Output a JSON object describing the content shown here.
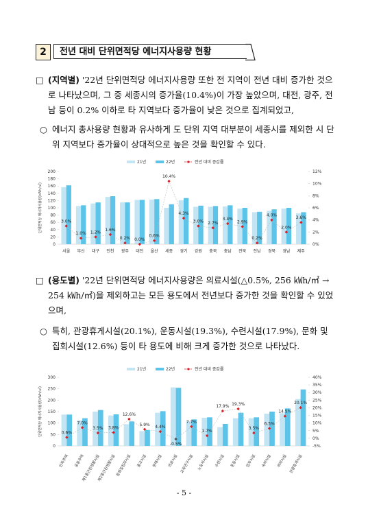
{
  "header": {
    "number": "2",
    "title": "전년 대비 단위면적당 에너지사용량 현황"
  },
  "paragraphs": [
    {
      "marker": "□",
      "label": "(지역별)",
      "text": "'22년 단위면적당 에너지사용량 또한 전 지역이 전년 대비 증가한 것으로 나타났으며, 그 중 세종시의 증가율(10.4%)이 가장 높았으며, 대전, 광주, 전남 등이 0.2% 이하로 타 지역보다 증가율이 낮은 것으로 집계되었고,"
    },
    {
      "marker": "○",
      "text": "에너지 총사용량 현황과 유사하게 도 단위 지역 대부분이 세종시를 제외한 시 단위 지역보다 증가율이 상대적으로 높은 것을 확인할 수 있다."
    },
    {
      "marker": "□",
      "label": "(용도별)",
      "text": "'22년 단위면적당 에너지사용량은 의료시설(△0.5%, 256 ㎾h/㎡ → 254 ㎾h/㎡)을 제외하고는 모든 용도에서 전년보다 증가한 것을 확인할 수 있었으며,"
    },
    {
      "marker": "○",
      "text": "특히, 관광휴게시설(20.1%), 운동시설(19.3%), 수련시설(17.9%), 문화 및 집회시설(12.6%) 등이 타 용도에 비해 크게 증가한 것으로 나타났다."
    }
  ],
  "chart_data": [
    {
      "type": "combo",
      "y_label": "단위면적당 에너지사용량(kWh/㎡)",
      "rotated_labels": false,
      "categories": [
        "서울",
        "부산",
        "대구",
        "인천",
        "광주",
        "대전",
        "울산",
        "세종",
        "경기",
        "강원",
        "충북",
        "충남",
        "전북",
        "전남",
        "경북",
        "경남",
        "제주"
      ],
      "series": [
        {
          "name": "21년",
          "color": "#c3e5f3",
          "values": [
            157,
            105,
            112,
            130,
            115,
            122,
            123,
            100,
            121,
            103,
            103,
            104,
            98,
            88,
            92,
            98,
            85
          ]
        },
        {
          "name": "22년",
          "color": "#5cc4e8",
          "values": [
            162,
            107,
            115,
            132,
            115,
            122,
            124,
            110,
            127,
            106,
            105,
            107,
            100,
            89,
            96,
            100,
            88
          ]
        },
        {
          "name": "전년 대비 증감률",
          "color": "#d81f26",
          "type": "line",
          "axis": "y2",
          "values": [
            3.0,
            1.0,
            1.2,
            1.6,
            0.2,
            0.0,
            0.6,
            10.4,
            4.3,
            3.0,
            2.7,
            3.4,
            2.9,
            0.2,
            4.0,
            2.0,
            3.6
          ],
          "value_labels": [
            "3.0%",
            "1.0%",
            "1.2%",
            "1.6%",
            "0.2%",
            "0.0%",
            "0.6%",
            "10.4%",
            "4.3%",
            "3.0%",
            "2.7%",
            "3.4%",
            "2.9%",
            "0.2%",
            "4.0%",
            "2.0%",
            "3.6%"
          ]
        }
      ],
      "ylim": [
        0,
        200
      ],
      "yticks": [
        0,
        20,
        40,
        60,
        80,
        100,
        120,
        140,
        160,
        180,
        200
      ],
      "y2lim": [
        0,
        12
      ],
      "y2ticks": [
        {
          "value": 0,
          "label": "0%"
        },
        {
          "value": 2,
          "label": "2%"
        },
        {
          "value": 4,
          "label": "4%"
        },
        {
          "value": 6,
          "label": "6%"
        },
        {
          "value": 8,
          "label": "8%"
        },
        {
          "value": 10,
          "label": "10%"
        },
        {
          "value": 12,
          "label": "12%"
        }
      ]
    },
    {
      "type": "combo",
      "y_label": "단위면적당 에너지사용량(kWh/㎡)",
      "rotated_labels": true,
      "categories": [
        "단독주택",
        "공동주택",
        "제1종근린생활시설",
        "제2종근린생활시설",
        "문화및집회시설",
        "종교시설",
        "판매시설",
        "의료시설",
        "교육연구시설",
        "노유자시설",
        "수련시설",
        "운동시설",
        "업무시설",
        "숙박시설",
        "위락시설",
        "관광휴게시설"
      ],
      "series": [
        {
          "name": "21년",
          "color": "#c3e5f3",
          "values": [
            137,
            112,
            150,
            133,
            95,
            65,
            145,
            256,
            108,
            123,
            82,
            121,
            121,
            141,
            143,
            205
          ]
        },
        {
          "name": "22년",
          "color": "#5cc4e8",
          "values": [
            137,
            121,
            157,
            138,
            107,
            69,
            152,
            254,
            116,
            125,
            96,
            145,
            125,
            150,
            164,
            247
          ]
        },
        {
          "name": "전년 대비 증감률",
          "color": "#d81f26",
          "type": "line",
          "axis": "y2",
          "values": [
            0.6,
            7.0,
            3.5,
            3.8,
            12.6,
            5.9,
            4.4,
            -0.5,
            7.7,
            1.7,
            17.9,
            19.3,
            3.5,
            6.5,
            14.5,
            20.1
          ],
          "value_labels": [
            "0.6%",
            "7.0%",
            "3.5%",
            "3.8%",
            "12.6%",
            "5.9%",
            "4.4%",
            "-0.5%",
            "7.7%",
            "1.7%",
            "17.9%",
            "19.3%",
            "3.5%",
            "6.5%",
            "14.5%",
            "20.1%"
          ]
        }
      ],
      "ylim": [
        0,
        300
      ],
      "yticks": [
        0,
        50,
        100,
        150,
        200,
        250,
        300
      ],
      "y2lim": [
        -5,
        40
      ],
      "y2ticks": [
        {
          "value": -5,
          "label": "-5%"
        },
        {
          "value": 0,
          "label": "0%"
        },
        {
          "value": 5,
          "label": "5%"
        },
        {
          "value": 10,
          "label": "10%"
        },
        {
          "value": 15,
          "label": "15%"
        },
        {
          "value": 20,
          "label": "20%"
        },
        {
          "value": 25,
          "label": "25%"
        },
        {
          "value": 30,
          "label": "30%"
        },
        {
          "value": 35,
          "label": "35%"
        },
        {
          "value": 40,
          "label": "40%"
        }
      ]
    }
  ],
  "footer": "- 5 -"
}
